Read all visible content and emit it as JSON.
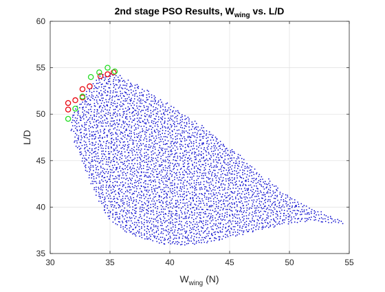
{
  "chart_data": {
    "type": "scatter",
    "title": "2nd stage PSO Results, W",
    "title_sub": "wing",
    "title_suffix": " vs. L/D",
    "xlabel": "W",
    "xlabel_sub": "wing",
    "xlabel_suffix": " (N)",
    "ylabel": "L/D",
    "xlim": [
      30,
      55
    ],
    "ylim": [
      35,
      60
    ],
    "xticks": [
      30,
      35,
      40,
      45,
      50,
      55
    ],
    "yticks": [
      35,
      40,
      45,
      50,
      55,
      60
    ],
    "grid": true,
    "legend": "none",
    "colors": {
      "cloud": "#0000cc",
      "red_circles": "#e8000b",
      "green_circles": "#22dd22",
      "grid": "#dedede",
      "axes": "#262626"
    },
    "series": [
      {
        "marker": "dot",
        "color": "#0000cc",
        "boundary": {
          "upper_x": [
            31.6,
            32.0,
            32.5,
            33.0,
            33.5,
            34.0,
            34.5,
            35.0,
            35.5,
            36.0,
            37.0,
            38.0,
            39.0,
            40.0,
            41.0,
            42.0,
            43.0,
            44.0,
            45.0,
            46.0,
            47.0,
            48.0,
            49.0,
            50.0,
            51.0,
            52.0,
            53.0,
            54.0,
            55.0
          ],
          "upper_y": [
            49.4,
            50.6,
            51.6,
            52.6,
            53.4,
            54.0,
            54.3,
            54.4,
            54.3,
            54.0,
            53.4,
            52.6,
            51.8,
            51.0,
            50.2,
            49.4,
            48.5,
            47.5,
            46.5,
            45.5,
            44.3,
            43.2,
            42.1,
            41.2,
            40.5,
            39.8,
            39.3,
            38.8,
            38.4
          ],
          "lower_x": [
            31.6,
            32.0,
            32.5,
            33.0,
            33.5,
            34.0,
            34.5,
            35.0,
            35.5,
            36.0,
            37.0,
            38.0,
            39.0,
            40.0,
            41.0,
            42.0,
            43.0,
            44.0,
            45.0,
            46.0,
            47.0,
            48.0,
            49.0,
            50.0,
            51.0,
            52.0,
            53.0,
            54.0,
            55.0
          ],
          "lower_y": [
            49.4,
            47.0,
            45.4,
            43.8,
            42.2,
            40.8,
            39.6,
            38.8,
            38.2,
            37.7,
            37.0,
            36.6,
            36.3,
            36.1,
            36.0,
            36.1,
            36.3,
            36.6,
            36.9,
            37.2,
            37.5,
            37.8,
            38.1,
            38.4,
            38.6,
            38.7,
            38.5,
            38.4,
            38.4
          ]
        }
      },
      {
        "marker": "circle",
        "color": "#e8000b",
        "x": [
          31.5,
          31.5,
          32.1,
          32.7,
          32.7,
          33.3,
          34.2,
          34.8,
          35.3
        ],
        "y": [
          51.2,
          50.5,
          51.5,
          51.8,
          52.7,
          53.0,
          54.1,
          54.3,
          54.5
        ]
      },
      {
        "marker": "circle",
        "color": "#22dd22",
        "x": [
          31.5,
          32.1,
          32.7,
          33.4,
          34.1,
          34.8,
          35.4
        ],
        "y": [
          49.5,
          50.6,
          51.9,
          54.0,
          54.5,
          55.0,
          54.6
        ]
      }
    ]
  }
}
